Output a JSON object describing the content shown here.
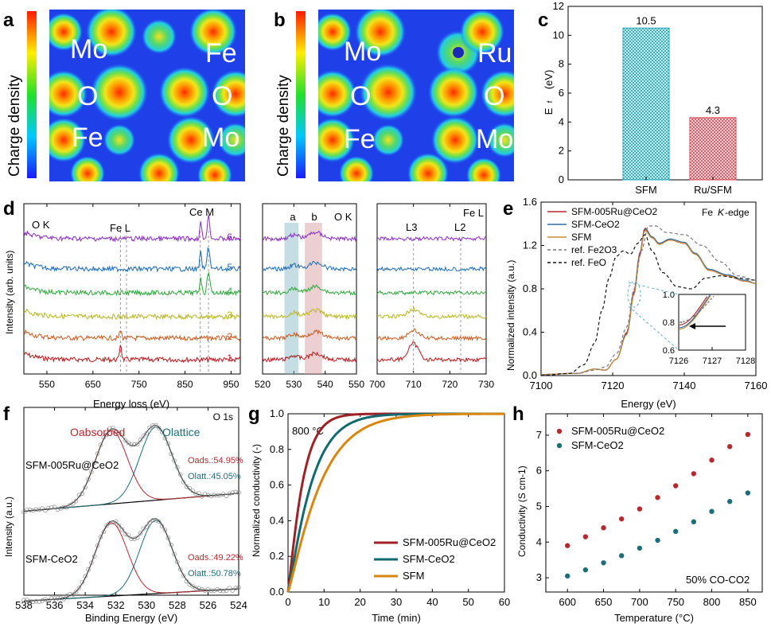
{
  "panel_letters": [
    "a",
    "b",
    "c",
    "d",
    "e",
    "f",
    "g",
    "h"
  ],
  "panel_a": {
    "cbar_label": "Charge density",
    "atoms": [
      "Mo",
      "Fe",
      "O",
      "O",
      "Fe",
      "Mo"
    ]
  },
  "panel_b": {
    "cbar_label": "Charge density",
    "atoms": [
      "Mo",
      "Ru",
      "O",
      "O",
      "Fe",
      "Mo"
    ]
  },
  "chart_data": [
    {
      "id": "c",
      "type": "bar",
      "categories": [
        "SFM",
        "Ru/SFM"
      ],
      "values": [
        10.5,
        4.3
      ],
      "value_labels": [
        "10.5",
        "4.3"
      ],
      "ylabel": "Ef (eV)",
      "ylim": [
        0,
        12
      ],
      "yticks": [
        0,
        2,
        4,
        6,
        8,
        10,
        12
      ],
      "colors": [
        "#1aa5b5",
        "#d9434e"
      ]
    },
    {
      "id": "d1",
      "type": "line",
      "xlabel": "Energy loss (eV)",
      "ylabel": "Intensity (arb. units)",
      "xlim": [
        500,
        970
      ],
      "xticks": [
        550,
        650,
        750,
        850,
        950
      ],
      "annotations": [
        "O K",
        "Fe L",
        "Ce M"
      ],
      "series": [
        {
          "label": "1",
          "color": "#b5181c"
        },
        {
          "label": "2",
          "color": "#c9591a"
        },
        {
          "label": "3",
          "color": "#b9b51e"
        },
        {
          "label": "4",
          "color": "#2ea83a"
        },
        {
          "label": "5",
          "color": "#1c6bb5"
        },
        {
          "label": "6",
          "color": "#8a2bc2"
        }
      ],
      "peaks_eV": [
        532,
        710,
        723,
        883,
        901
      ]
    },
    {
      "id": "d2",
      "type": "line",
      "xlim": [
        520,
        550
      ],
      "xticks": [
        520,
        530,
        540,
        550
      ],
      "annotations": [
        "a",
        "b",
        "O K"
      ],
      "shaded_regions": [
        {
          "label": "a",
          "range": [
            527,
            531.5
          ]
        },
        {
          "label": "b",
          "range": [
            533.5,
            539
          ]
        }
      ]
    },
    {
      "id": "d3",
      "type": "line",
      "xlim": [
        700,
        730
      ],
      "xticks": [
        700,
        710,
        720,
        730
      ],
      "annotations": [
        "Fe L",
        "L3",
        "L2"
      ],
      "peaks_eV": [
        710,
        723
      ]
    },
    {
      "id": "e",
      "type": "line",
      "title": "Fe K-edge",
      "xlabel": "Energy (eV)",
      "ylabel": "Normalized intensity (a.u.)",
      "xlim": [
        7100,
        7160
      ],
      "xticks": [
        7100,
        7120,
        7140,
        7160
      ],
      "ylim": [
        0,
        1.6
      ],
      "yticks": [
        0.0,
        0.4,
        0.8,
        1.2,
        1.6
      ],
      "series": [
        {
          "name": "SFM-005Ru@CeO2",
          "color": "#b5282d",
          "x": [
            7100,
            7110,
            7115,
            7118,
            7121,
            7124,
            7126,
            7127.5,
            7129,
            7131,
            7133,
            7136,
            7140,
            7143,
            7147,
            7152,
            7157,
            7160
          ],
          "y": [
            0.01,
            0.02,
            0.06,
            0.05,
            0.15,
            0.4,
            0.78,
            1.12,
            1.36,
            1.28,
            1.22,
            1.25,
            1.22,
            1.12,
            0.97,
            0.92,
            0.87,
            0.85
          ]
        },
        {
          "name": "SFM-CeO2",
          "color": "#2d6a9e",
          "x": [
            7100,
            7110,
            7115,
            7118,
            7121,
            7124,
            7126,
            7127.5,
            7129,
            7131,
            7133,
            7136,
            7140,
            7143,
            7147,
            7152,
            7157,
            7160
          ],
          "y": [
            0.01,
            0.02,
            0.06,
            0.05,
            0.15,
            0.39,
            0.76,
            1.1,
            1.35,
            1.28,
            1.22,
            1.26,
            1.23,
            1.13,
            0.98,
            0.93,
            0.88,
            0.85
          ]
        },
        {
          "name": "SFM",
          "color": "#c98a3a",
          "x": [
            7100,
            7110,
            7115,
            7118,
            7121,
            7124,
            7126,
            7127.5,
            7129,
            7131,
            7133,
            7136,
            7140,
            7143,
            7147,
            7152,
            7157,
            7160
          ],
          "y": [
            0.01,
            0.02,
            0.06,
            0.05,
            0.15,
            0.38,
            0.75,
            1.09,
            1.34,
            1.27,
            1.21,
            1.25,
            1.22,
            1.12,
            0.97,
            0.92,
            0.87,
            0.85
          ]
        },
        {
          "name": "ref. Fe2O3",
          "color": "#777777",
          "dash": true,
          "x": [
            7100,
            7110,
            7115,
            7118,
            7121,
            7124,
            7126,
            7128,
            7130,
            7132,
            7135,
            7140,
            7145,
            7150,
            7155,
            7160
          ],
          "y": [
            0.01,
            0.02,
            0.05,
            0.08,
            0.2,
            0.45,
            0.8,
            1.15,
            1.38,
            1.38,
            1.32,
            1.3,
            1.2,
            1.05,
            0.92,
            0.88
          ]
        },
        {
          "name": "ref. FeO",
          "color": "#111111",
          "dash": true,
          "x": [
            7100,
            7108,
            7112,
            7115,
            7117,
            7119,
            7121,
            7123,
            7125,
            7127,
            7129,
            7131,
            7134,
            7138,
            7142,
            7146,
            7150,
            7155,
            7160
          ],
          "y": [
            0.0,
            0.02,
            0.1,
            0.3,
            0.6,
            0.9,
            1.1,
            1.15,
            1.12,
            1.22,
            1.3,
            1.15,
            0.95,
            0.82,
            0.8,
            0.9,
            0.92,
            0.9,
            0.88
          ]
        }
      ],
      "inset": {
        "xlim": [
          7126,
          7128
        ],
        "xticks": [
          7126,
          7127,
          7128
        ],
        "ylim": [
          0.6,
          1.0
        ],
        "yticks": [
          0.6,
          0.8,
          1.0
        ]
      }
    },
    {
      "id": "f",
      "type": "line",
      "title": "O 1s",
      "xlabel": "Binding Energy (eV)",
      "ylabel": "Intensity (a.u.)",
      "xlim": [
        538,
        524
      ],
      "xticks": [
        538,
        536,
        534,
        532,
        530,
        528,
        526,
        524
      ],
      "labels": [
        "Oabsorbed",
        "Olattice"
      ],
      "samples": [
        {
          "name": "SFM-005Ru@CeO2",
          "ads": "Oads.:54.95%",
          "latt": "Olatt.:45.05%",
          "peak_ads": 532.3,
          "peak_latt": 529.4
        },
        {
          "name": "SFM-CeO2",
          "ads": "Oads.:49.22%",
          "latt": "Olatt.:50.78%",
          "peak_ads": 532.3,
          "peak_latt": 529.4
        }
      ]
    },
    {
      "id": "g",
      "type": "line",
      "annotation": "800 °C",
      "xlabel": "Time (min)",
      "ylabel": "Normalized conductivity (-)",
      "xlim": [
        0,
        60
      ],
      "xticks": [
        0,
        10,
        20,
        30,
        40,
        50,
        60
      ],
      "ylim": [
        0,
        1.0
      ],
      "yticks": [
        0.0,
        0.2,
        0.4,
        0.6,
        0.8,
        1.0
      ],
      "series": [
        {
          "name": "SFM-005Ru@CeO2",
          "color": "#9e2127",
          "tau": 4.2
        },
        {
          "name": "SFM-CeO2",
          "color": "#116a6d",
          "tau": 6.8
        },
        {
          "name": "SFM",
          "color": "#d8860f",
          "tau": 9.5
        }
      ]
    },
    {
      "id": "h",
      "type": "scatter",
      "annotation": "50% CO-CO2",
      "xlabel": "Temperature (°C)",
      "ylabel": "Conductivity (S cm-1)",
      "xlim": [
        570,
        870
      ],
      "xticks": [
        600,
        650,
        700,
        750,
        800,
        850
      ],
      "ylim": [
        2.6,
        7.6
      ],
      "yticks": [
        3,
        4,
        5,
        6,
        7
      ],
      "series": [
        {
          "name": "SFM-005Ru@CeO2",
          "color": "#b32a2f",
          "x": [
            600,
            625,
            650,
            675,
            700,
            725,
            750,
            775,
            800,
            825,
            850
          ],
          "y": [
            3.9,
            4.15,
            4.4,
            4.65,
            4.93,
            5.25,
            5.58,
            5.92,
            6.3,
            6.68,
            7.02
          ]
        },
        {
          "name": "SFM-CeO2",
          "color": "#1d6e77",
          "x": [
            600,
            625,
            650,
            675,
            700,
            725,
            750,
            775,
            800,
            825,
            850
          ],
          "y": [
            3.05,
            3.22,
            3.42,
            3.62,
            3.83,
            4.05,
            4.3,
            4.57,
            4.86,
            5.14,
            5.38
          ]
        }
      ]
    }
  ]
}
